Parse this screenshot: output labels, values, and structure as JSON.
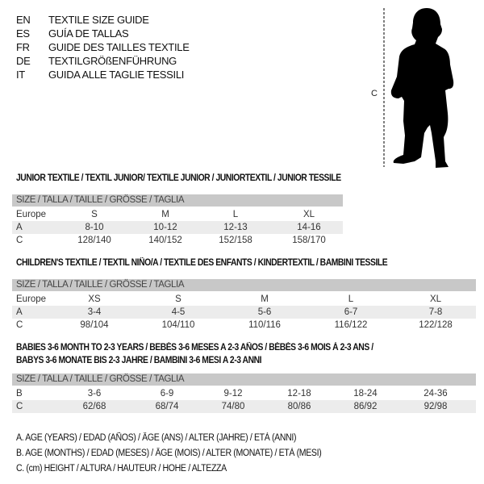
{
  "languages": [
    {
      "code": "EN",
      "text": "TEXTILE SIZE GUIDE"
    },
    {
      "code": "ES",
      "text": "GUÍA DE TALLAS"
    },
    {
      "code": "FR",
      "text": "GUIDE DES TAILLES TEXTILE"
    },
    {
      "code": "DE",
      "text": "TEXTILGRÖßENFÜHRUNG"
    },
    {
      "code": "IT",
      "text": "GUIDA ALLE TAGLIE TESSILI"
    }
  ],
  "figure": {
    "height_label": "C"
  },
  "tables": [
    {
      "title": "JUNIOR TEXTILE / TEXTIL JUNIOR/ TEXTILE JUNIOR / JUNIORTEXTIL / JUNIOR TESSILE",
      "header": "SIZE / TALLA / TAILLE / GRÖSSE / TAGLIA",
      "rows": [
        {
          "label": "Europe",
          "values": [
            "S",
            "M",
            "L",
            "XL"
          ]
        },
        {
          "label": "A",
          "values": [
            "8-10",
            "10-12",
            "12-13",
            "14-16"
          ]
        },
        {
          "label": "C",
          "values": [
            "128/140",
            "140/152",
            "152/158",
            "158/170"
          ]
        }
      ]
    },
    {
      "title": "CHILDREN'S TEXTILE / TEXTIL NIÑO/A / TEXTILE DES ENFANTS / KINDERTEXTIL / BAMBINI TESSILE",
      "header": "SIZE / TALLA / TAILLE / GRÖSSE / TAGLIA",
      "rows": [
        {
          "label": "Europe",
          "values": [
            "XS",
            "S",
            "M",
            "L",
            "XL"
          ]
        },
        {
          "label": "A",
          "values": [
            "3-4",
            "4-5",
            "5-6",
            "6-7",
            "7-8"
          ]
        },
        {
          "label": "C",
          "values": [
            "98/104",
            "104/110",
            "110/116",
            "116/122",
            "122/128"
          ]
        }
      ]
    },
    {
      "title": "BABIES 3-6 MONTH TO 2-3 YEARS / BEBÉS 3-6 MESES A 2-3 AÑOS / BÉBÉS 3-6 MOIS À 2-3 ANS /",
      "title2": "BABYS 3-6 MONATE BIS 2-3 JAHRE / BAMBINI 3-6 MESI A 2-3 ANNI",
      "header": "SIZE / TALLA / TAILLE / GRÖSSE / TAGLIA",
      "rows": [
        {
          "label": "B",
          "values": [
            "3-6",
            "6-9",
            "9-12",
            "12-18",
            "18-24",
            "24-36"
          ]
        },
        {
          "label": "C",
          "values": [
            "62/68",
            "68/74",
            "74/80",
            "80/86",
            "86/92",
            "92/98"
          ]
        }
      ]
    }
  ],
  "legend": [
    "A. AGE (YEARS) / EDAD (AÑOS) / ÂGE (ANS) / ALTER (JAHRE) / ETÀ (ANNI)",
    "B. AGE (MONTHS) / EDAD (MESES) / ÂGE (MOIS) / ALTER (MONATE) / ETÀ (MESI)",
    "C. (cm) HEIGHT / ALTURA / HAUTEUR / HÖHE / ALTEZZA"
  ]
}
